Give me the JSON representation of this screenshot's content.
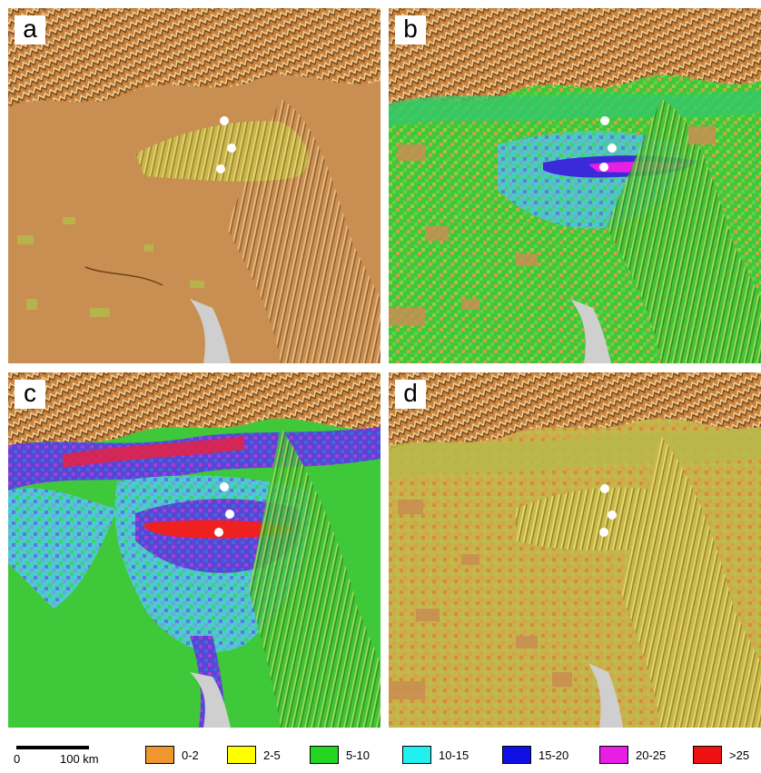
{
  "panels": [
    {
      "label": "a"
    },
    {
      "label": "b"
    },
    {
      "label": "c"
    },
    {
      "label": "d"
    }
  ],
  "scale_bar": {
    "start": "0",
    "end": "100 km"
  },
  "legend": [
    {
      "label": "0-2",
      "color": "#f0962e"
    },
    {
      "label": "2-5",
      "color": "#ffff00"
    },
    {
      "label": "5-10",
      "color": "#22d622"
    },
    {
      "label": "10-15",
      "color": "#20f0f0"
    },
    {
      "label": "15-20",
      "color": "#1010e6"
    },
    {
      "label": "20-25",
      "color": "#e61ee6"
    },
    {
      "label": ">25",
      "color": "#ee1111"
    }
  ],
  "map_colors": {
    "land": "#c98f52",
    "water": "#cfcfcf",
    "markers": "#ffffff"
  }
}
